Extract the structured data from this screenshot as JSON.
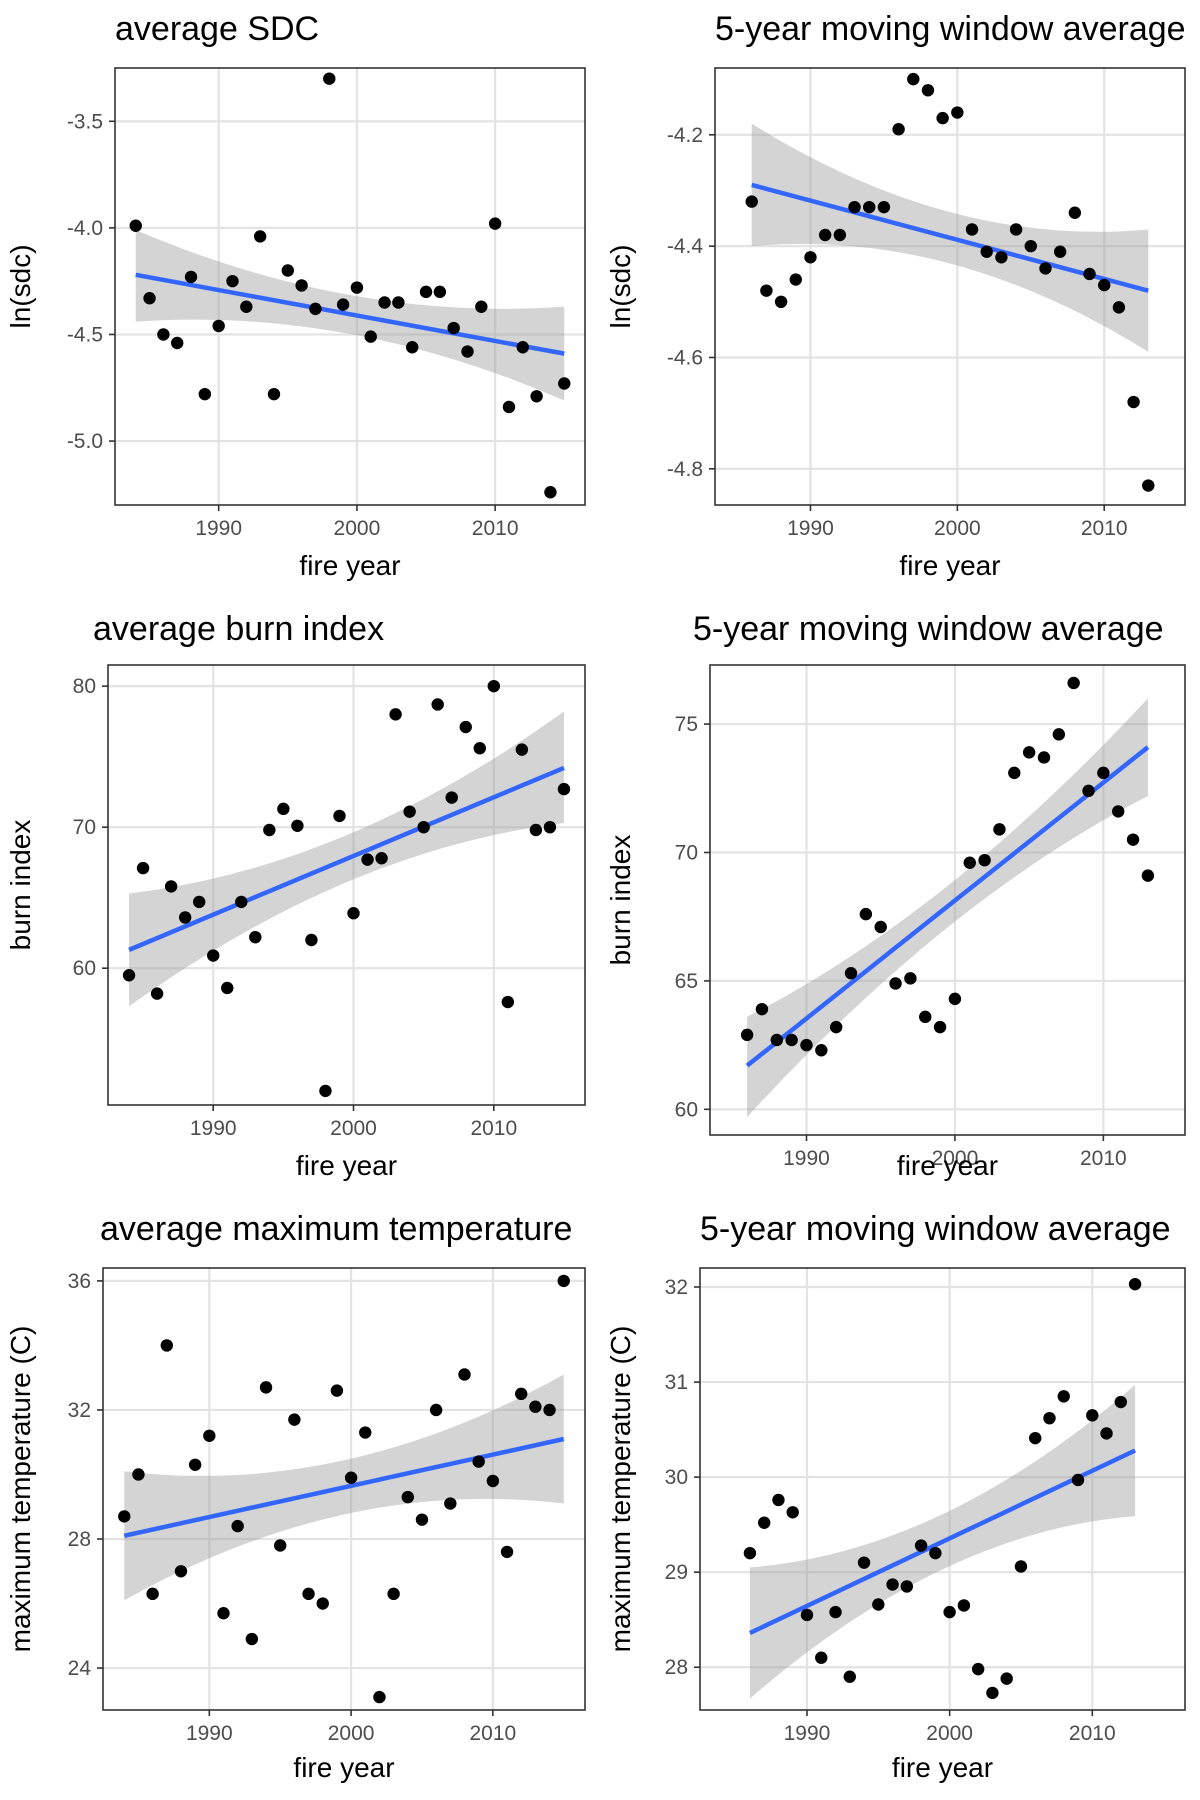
{
  "chart_data": [
    {
      "type": "scatter",
      "title": "average SDC",
      "xlabel": "fire year",
      "ylabel": "ln(sdc)",
      "xlim": [
        1982.5,
        2016.5
      ],
      "ylim": [
        -5.3,
        -3.25
      ],
      "xticks": [
        1990,
        2000,
        2010
      ],
      "yticks": [
        -5.0,
        -4.5,
        -4.0,
        -3.5
      ],
      "ytick_labels": [
        "-5.0",
        "-4.5",
        "-4.0",
        "-3.5"
      ],
      "grid": true,
      "x": [
        1984,
        1985,
        1986,
        1987,
        1988,
        1989,
        1990,
        1991,
        1992,
        1993,
        1994,
        1995,
        1996,
        1997,
        1998,
        1999,
        2000,
        2001,
        2002,
        2003,
        2004,
        2005,
        2006,
        2007,
        2008,
        2009,
        2010,
        2011,
        2012,
        2013,
        2014,
        2015
      ],
      "y": [
        -3.99,
        -4.33,
        -4.5,
        -4.54,
        -4.23,
        -4.78,
        -4.46,
        -4.25,
        -4.37,
        -4.04,
        -4.78,
        -4.2,
        -4.27,
        -4.38,
        -3.3,
        -4.36,
        -4.28,
        -4.51,
        -4.35,
        -4.35,
        -4.56,
        -4.3,
        -4.3,
        -4.47,
        -4.58,
        -4.37,
        -3.98,
        -4.84,
        -4.56,
        -4.79,
        -5.24,
        -4.73
      ],
      "fit": {
        "x": [
          1984,
          2015
        ],
        "y": [
          -4.22,
          -4.59
        ],
        "ci_lower": [
          -4.44,
          -4.81
        ],
        "ci_upper": [
          -4.01,
          -4.37
        ]
      }
    },
    {
      "type": "scatter",
      "title": "5-year moving window average",
      "xlabel": "fire year",
      "ylabel": "ln(sdc)",
      "xlim": [
        1983.5,
        2015.5
      ],
      "ylim": [
        -4.865,
        -4.08
      ],
      "xticks": [
        1990,
        2000,
        2010
      ],
      "yticks": [
        -4.8,
        -4.6,
        -4.4,
        -4.2
      ],
      "ytick_labels": [
        "-4.8",
        "-4.6",
        "-4.4",
        "-4.2"
      ],
      "grid": true,
      "x": [
        1986,
        1987,
        1988,
        1989,
        1990,
        1991,
        1992,
        1993,
        1994,
        1995,
        1996,
        1997,
        1998,
        1999,
        2000,
        2001,
        2002,
        2003,
        2004,
        2005,
        2006,
        2007,
        2008,
        2009,
        2010,
        2011,
        2012,
        2013
      ],
      "y": [
        -4.32,
        -4.48,
        -4.5,
        -4.46,
        -4.42,
        -4.38,
        -4.38,
        -4.33,
        -4.33,
        -4.33,
        -4.19,
        -4.1,
        -4.12,
        -4.17,
        -4.16,
        -4.37,
        -4.41,
        -4.42,
        -4.37,
        -4.4,
        -4.44,
        -4.41,
        -4.34,
        -4.45,
        -4.47,
        -4.51,
        -4.68,
        -4.83
      ],
      "fit": {
        "x": [
          1986,
          2013
        ],
        "y": [
          -4.29,
          -4.48
        ],
        "ci_lower": [
          -4.4,
          -4.59
        ],
        "ci_upper": [
          -4.18,
          -4.37
        ]
      }
    },
    {
      "type": "scatter",
      "title": "average burn index",
      "xlabel": "fire year",
      "ylabel": "burn index",
      "xlim": [
        1982.5,
        2016.5
      ],
      "ylim": [
        50.3,
        81.5
      ],
      "xticks": [
        1990,
        2000,
        2010
      ],
      "yticks": [
        60,
        70,
        80
      ],
      "ytick_labels": [
        "60",
        "70",
        "80"
      ],
      "grid": true,
      "x": [
        1984,
        1985,
        1986,
        1987,
        1988,
        1989,
        1990,
        1991,
        1992,
        1993,
        1994,
        1995,
        1996,
        1997,
        1998,
        1999,
        2000,
        2001,
        2002,
        2003,
        2004,
        2005,
        2006,
        2007,
        2008,
        2009,
        2010,
        2011,
        2012,
        2013,
        2014,
        2015
      ],
      "y": [
        59.5,
        67.1,
        58.2,
        65.8,
        63.6,
        64.7,
        60.9,
        58.6,
        64.7,
        62.2,
        69.8,
        71.3,
        70.1,
        62.0,
        51.3,
        70.8,
        63.9,
        67.7,
        67.8,
        78.0,
        71.1,
        70.0,
        78.7,
        72.1,
        77.1,
        75.6,
        80.0,
        57.6,
        75.5,
        69.8,
        70.0,
        72.7
      ],
      "fit": {
        "x": [
          1984,
          2015
        ],
        "y": [
          61.3,
          74.2
        ],
        "ci_lower": [
          57.3,
          70.3
        ],
        "ci_upper": [
          65.3,
          78.2
        ]
      }
    },
    {
      "type": "scatter",
      "title": "5-year moving window average",
      "xlabel": "fire year",
      "ylabel": "burn index",
      "xlim": [
        1983.5,
        2015.5
      ],
      "ylim": [
        59.0,
        77.3
      ],
      "xticks": [
        1990,
        2000,
        2010
      ],
      "yticks": [
        60,
        65,
        70,
        75
      ],
      "ytick_labels": [
        "60",
        "65",
        "70",
        "75"
      ],
      "grid": true,
      "x": [
        1986,
        1987,
        1988,
        1989,
        1990,
        1991,
        1992,
        1993,
        1994,
        1995,
        1996,
        1997,
        1998,
        1999,
        2000,
        2001,
        2002,
        2003,
        2004,
        2005,
        2006,
        2007,
        2008,
        2009,
        2010,
        2011,
        2012,
        2013
      ],
      "y": [
        62.9,
        63.9,
        62.7,
        62.7,
        62.5,
        62.3,
        63.2,
        65.3,
        67.6,
        67.1,
        64.9,
        65.1,
        63.6,
        63.2,
        64.3,
        69.6,
        69.7,
        70.9,
        73.1,
        73.9,
        73.7,
        74.6,
        76.6,
        72.4,
        73.1,
        71.6,
        70.5,
        69.1
      ],
      "fit": {
        "x": [
          1986,
          2013
        ],
        "y": [
          61.7,
          74.1
        ],
        "ci_lower": [
          59.7,
          72.2
        ],
        "ci_upper": [
          63.6,
          76.0
        ]
      }
    },
    {
      "type": "scatter",
      "title": "average maximum temperature",
      "xlabel": "fire year",
      "ylabel": "maximum temperature (C)",
      "xlim": [
        1982.5,
        2016.5
      ],
      "ylim": [
        22.7,
        36.4
      ],
      "xticks": [
        1990,
        2000,
        2010
      ],
      "yticks": [
        24,
        28,
        32,
        36
      ],
      "ytick_labels": [
        "24",
        "28",
        "32",
        "36"
      ],
      "grid": true,
      "x": [
        1984,
        1985,
        1986,
        1987,
        1988,
        1989,
        1990,
        1991,
        1992,
        1993,
        1994,
        1995,
        1996,
        1997,
        1998,
        1999,
        2000,
        2001,
        2002,
        2003,
        2004,
        2005,
        2006,
        2007,
        2008,
        2009,
        2010,
        2011,
        2012,
        2013,
        2014,
        2015
      ],
      "y": [
        28.7,
        30.0,
        26.3,
        34.0,
        27.0,
        30.3,
        31.2,
        25.7,
        28.4,
        24.9,
        32.7,
        27.8,
        31.7,
        26.3,
        26.0,
        32.6,
        29.9,
        31.3,
        23.1,
        26.3,
        29.3,
        28.6,
        32.0,
        29.1,
        33.1,
        30.4,
        29.8,
        27.6,
        32.5,
        32.1,
        32.0,
        36.0
      ],
      "fit": {
        "x": [
          1984,
          2015
        ],
        "y": [
          28.1,
          31.1
        ],
        "ci_lower": [
          26.1,
          29.1
        ],
        "ci_upper": [
          30.1,
          33.1
        ]
      }
    },
    {
      "type": "scatter",
      "title": "5-year moving window average",
      "xlabel": "fire year",
      "ylabel": "maximum temperature (C)",
      "xlim": [
        1982.5,
        2016.5
      ],
      "ylim": [
        27.55,
        32.2
      ],
      "xticks": [
        1990,
        2000,
        2010
      ],
      "yticks": [
        28,
        29,
        30,
        31,
        32
      ],
      "ytick_labels": [
        "28",
        "29",
        "30",
        "31",
        "32"
      ],
      "grid": true,
      "x": [
        1986,
        1987,
        1988,
        1989,
        1990,
        1991,
        1992,
        1993,
        1994,
        1995,
        1996,
        1997,
        1998,
        1999,
        2000,
        2001,
        2002,
        2003,
        2004,
        2005,
        2006,
        2007,
        2008,
        2009,
        2010,
        2011,
        2012,
        2013
      ],
      "y": [
        29.2,
        29.52,
        29.76,
        29.63,
        28.55,
        28.1,
        28.58,
        27.9,
        29.1,
        28.66,
        28.87,
        28.85,
        29.28,
        29.2,
        28.58,
        28.65,
        27.98,
        27.73,
        27.88,
        29.06,
        30.41,
        30.62,
        30.85,
        29.97,
        30.65,
        30.46,
        30.79,
        32.03
      ],
      "fit": {
        "x": [
          1986,
          2013
        ],
        "y": [
          28.36,
          30.28
        ],
        "ci_lower": [
          27.67,
          29.59
        ],
        "ci_upper": [
          29.05,
          30.97
        ]
      }
    }
  ]
}
